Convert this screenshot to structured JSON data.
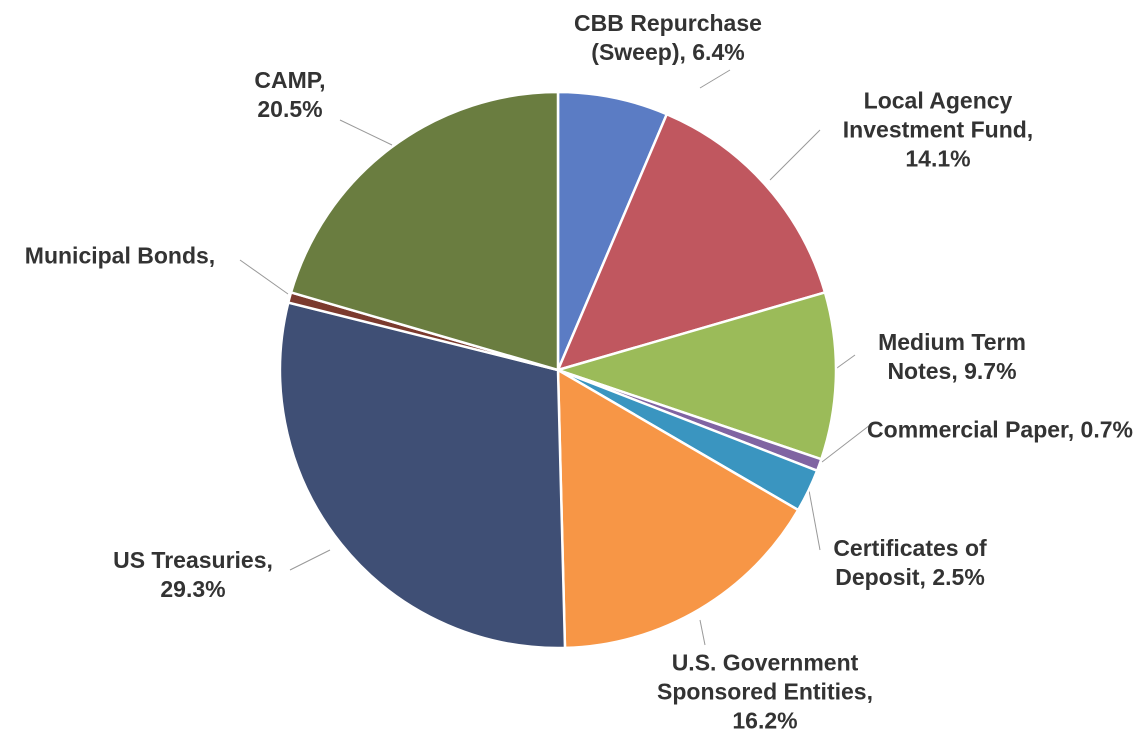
{
  "chart_data": {
    "type": "pie",
    "categories": [
      "CBB Repurchase (Sweep),",
      "Local Agency Investment Fund,",
      "Medium Term Notes,",
      "Commercial Paper,",
      "Certificates of Deposit,",
      "U.S. Government Sponsored Entities,",
      "US Treasuries,",
      "Municipal Bonds,",
      "CAMP,"
    ],
    "values": [
      6.4,
      14.1,
      9.7,
      0.7,
      2.5,
      16.2,
      29.3,
      0.6,
      20.5
    ],
    "value_labels": [
      "6.4%",
      "14.1%",
      "9.7%",
      "0.7%",
      "2.5%",
      "16.2%",
      "29.3%",
      null,
      "20.5%"
    ],
    "colors": [
      "#5b7cc4",
      "#c0575f",
      "#9bbb59",
      "#8064a2",
      "#3a95c0",
      "#f79646",
      "#3f4f75",
      "#7b3a2e",
      "#6a7d40"
    ]
  }
}
